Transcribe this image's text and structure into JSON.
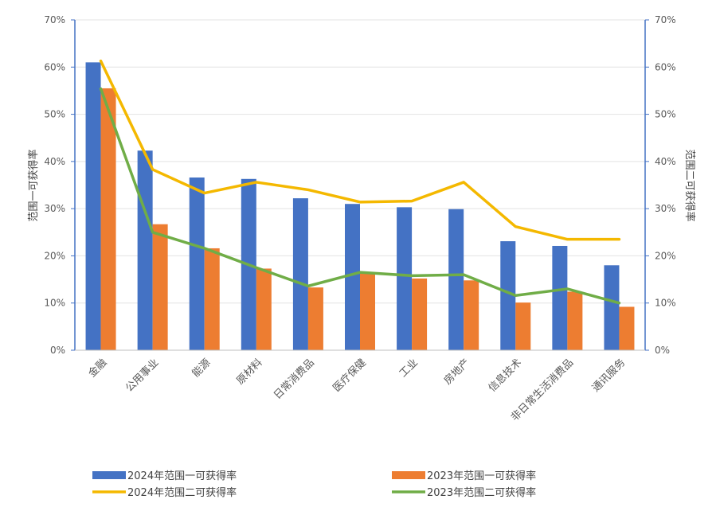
{
  "chart_data": {
    "type": "bar",
    "categories": [
      "金融",
      "公用事业",
      "能源",
      "原材料",
      "日常消费品",
      "医疗保健",
      "工业",
      "房地产",
      "信息技术",
      "非日常生活消费品",
      "通讯服务"
    ],
    "series": [
      {
        "name": "2024年范围一可获得率",
        "type": "bar",
        "axis": "left",
        "color": "#4472C4",
        "values": [
          61.0,
          42.3,
          36.6,
          36.3,
          32.2,
          31.0,
          30.3,
          29.9,
          23.1,
          22.1,
          18.0
        ]
      },
      {
        "name": "2023年范围一可获得率",
        "type": "bar",
        "axis": "left",
        "color": "#ED7D31",
        "values": [
          55.5,
          26.7,
          21.6,
          17.3,
          13.3,
          16.3,
          15.2,
          14.8,
          10.1,
          12.4,
          9.2
        ]
      },
      {
        "name": "2024年范围二可获得率",
        "type": "line",
        "axis": "right",
        "color": "#F4B800",
        "values": [
          61.3,
          38.3,
          33.3,
          35.6,
          34.0,
          31.4,
          31.6,
          35.6,
          26.2,
          23.5,
          23.5
        ]
      },
      {
        "name": "2023年范围二可获得率",
        "type": "line",
        "axis": "right",
        "color": "#70AD47",
        "values": [
          55.4,
          25.0,
          21.6,
          17.5,
          13.6,
          16.5,
          15.8,
          16.0,
          11.6,
          13.0,
          10.0
        ]
      }
    ],
    "ylabel": "范围一可获得率",
    "y2label": "范围二可获得率",
    "ylim": [
      0,
      70
    ],
    "y2lim": [
      0,
      70
    ],
    "yticks": [
      "0%",
      "10%",
      "20%",
      "30%",
      "40%",
      "50%",
      "60%",
      "70%"
    ],
    "y2ticks": [
      "0%",
      "10%",
      "20%",
      "30%",
      "40%",
      "50%",
      "60%",
      "70%"
    ],
    "grid": true,
    "legend_position": "bottom"
  }
}
